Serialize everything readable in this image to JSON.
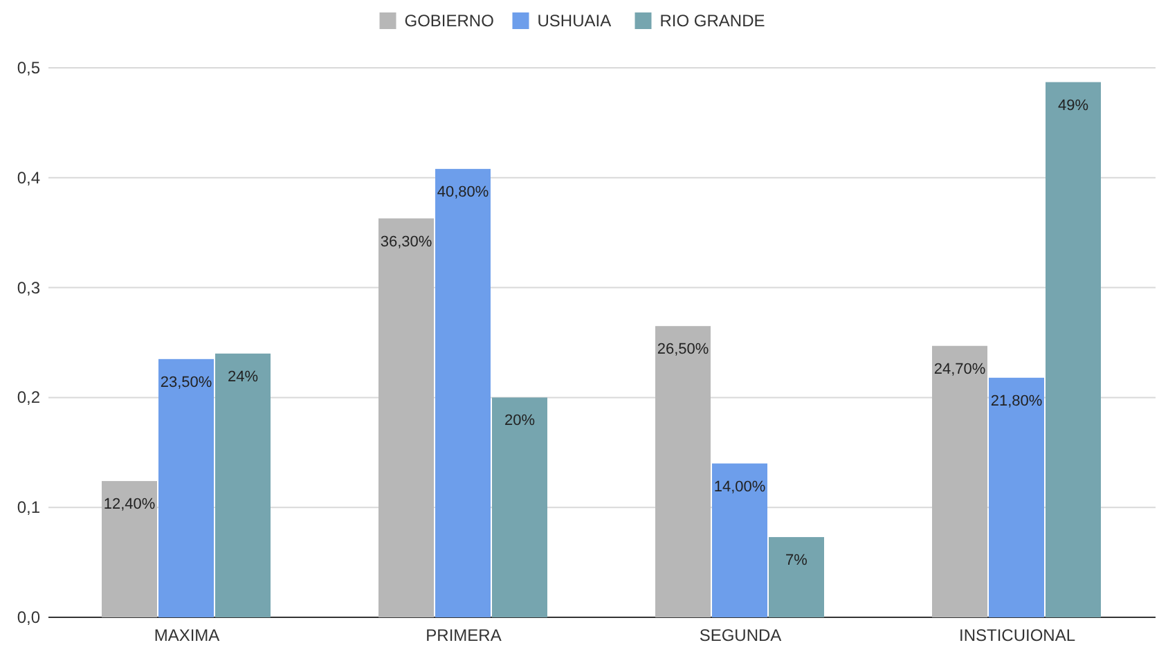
{
  "chart_data": {
    "type": "bar",
    "categories": [
      "MAXIMA",
      "PRIMERA",
      "SEGUNDA",
      "INSTICUIONAL"
    ],
    "series": [
      {
        "name": "GOBIERNO",
        "color": "#b7b7b7",
        "values": [
          0.124,
          0.363,
          0.265,
          0.247
        ],
        "value_labels": [
          "12,40%",
          "36,30%",
          "26,50%",
          "24,70%"
        ]
      },
      {
        "name": "USHUAIA",
        "color": "#6d9eeb",
        "values": [
          0.235,
          0.408,
          0.14,
          0.218
        ],
        "value_labels": [
          "23,50%",
          "40,80%",
          "14,00%",
          "21,80%"
        ]
      },
      {
        "name": "RIO GRANDE",
        "color": "#76a5af",
        "values": [
          0.24,
          0.2,
          0.073,
          0.487
        ],
        "value_labels": [
          "24%",
          "20%",
          "7%",
          "49%"
        ]
      }
    ],
    "ylim": [
      0,
      0.5
    ],
    "yticks": [
      {
        "value": 0,
        "label": "0,0"
      },
      {
        "value": 0.1,
        "label": "0,1"
      },
      {
        "value": 0.2,
        "label": "0,2"
      },
      {
        "value": 0.3,
        "label": "0,3"
      },
      {
        "value": 0.4,
        "label": "0,4"
      },
      {
        "value": 0.5,
        "label": "0,5"
      }
    ],
    "grid": "y",
    "legend": "top"
  }
}
